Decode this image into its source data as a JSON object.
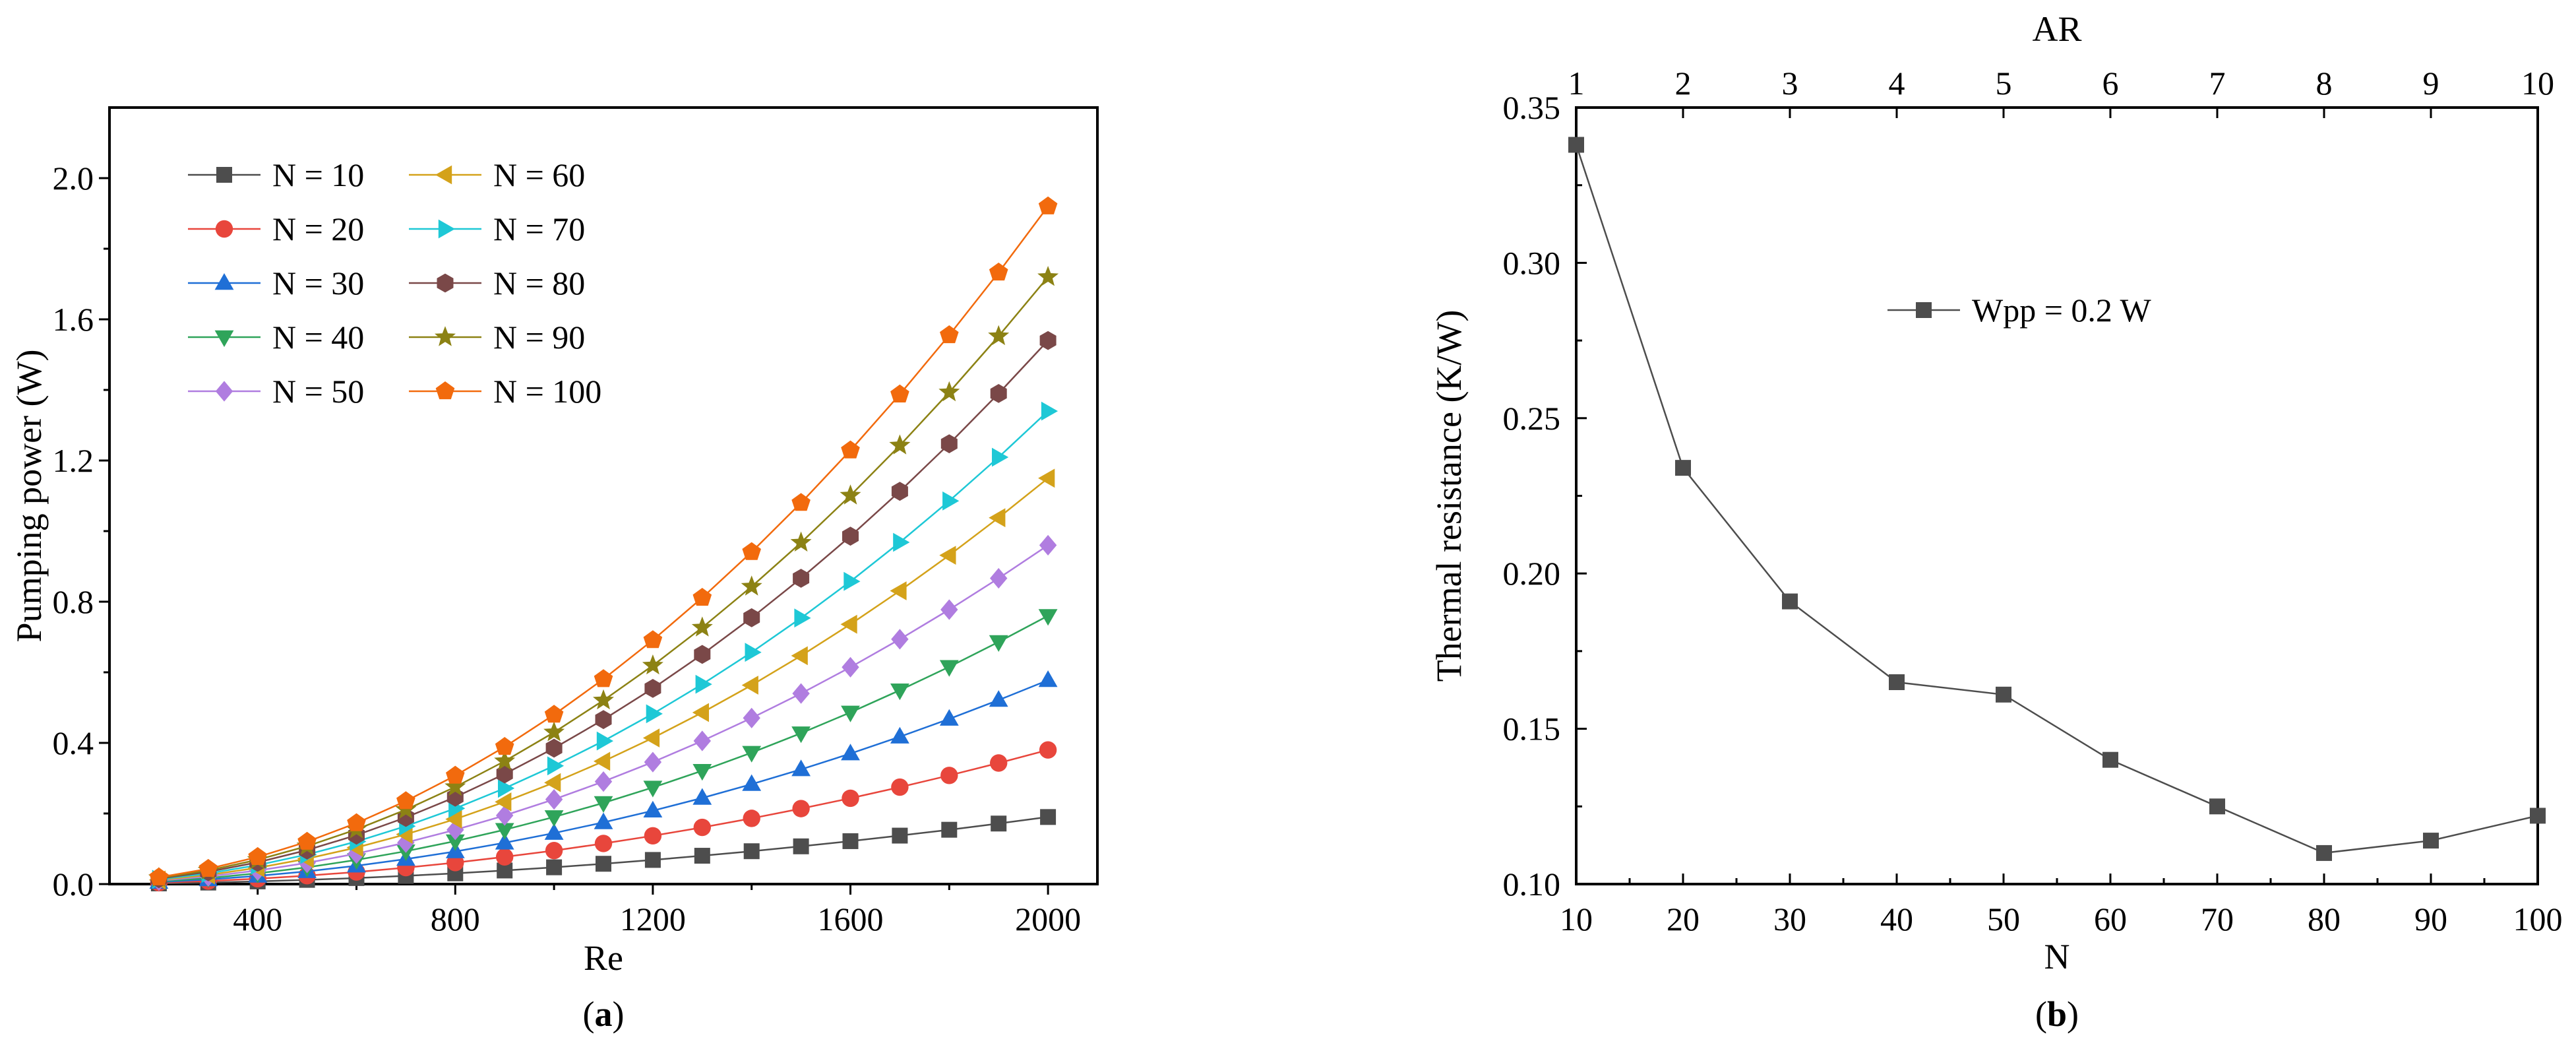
{
  "chart_data": [
    {
      "type": "line",
      "panel_label": "(a)",
      "panel_letter": "a",
      "xlabel": "Re",
      "ylabel": "Pumping power (W)",
      "xlim": [
        100,
        2100
      ],
      "ylim": [
        0,
        2.2
      ],
      "xticks": [
        400,
        800,
        1200,
        1600,
        2000
      ],
      "yticks": [
        0.0,
        0.4,
        0.8,
        1.2,
        1.6,
        2.0
      ],
      "ytick_labels": [
        "0.0",
        "0.4",
        "0.8",
        "1.2",
        "1.6",
        "2.0"
      ],
      "x": [
        200,
        300,
        400,
        500,
        600,
        700,
        800,
        900,
        1000,
        1100,
        1200,
        1300,
        1400,
        1500,
        1600,
        1700,
        1800,
        1900,
        2000
      ],
      "legend_position": "top-left",
      "series": [
        {
          "name": "N = 10",
          "color": "#4d4d4d",
          "marker": "square",
          "values": [
            0.0019,
            0.0043,
            0.0076,
            0.0119,
            0.0171,
            0.0233,
            0.0304,
            0.0385,
            0.0475,
            0.0575,
            0.0684,
            0.0803,
            0.0931,
            0.1069,
            0.1216,
            0.1373,
            0.1539,
            0.1715,
            0.19
          ]
        },
        {
          "name": "N = 20",
          "color": "#e8463c",
          "marker": "circle",
          "values": [
            0.0038,
            0.0086,
            0.0152,
            0.0238,
            0.0342,
            0.0466,
            0.0608,
            0.077,
            0.095,
            0.115,
            0.1368,
            0.1606,
            0.1862,
            0.2138,
            0.2432,
            0.2746,
            0.3078,
            0.343,
            0.38
          ]
        },
        {
          "name": "N = 30",
          "color": "#1f6fd6",
          "marker": "triangle-up",
          "values": [
            0.0058,
            0.013,
            0.0231,
            0.0361,
            0.052,
            0.0708,
            0.0924,
            0.117,
            0.1444,
            0.1747,
            0.2079,
            0.244,
            0.283,
            0.3249,
            0.3697,
            0.4173,
            0.4679,
            0.5213,
            0.5776
          ]
        },
        {
          "name": "N = 40",
          "color": "#2fa45a",
          "marker": "triangle-down",
          "values": [
            0.0076,
            0.0171,
            0.0304,
            0.0475,
            0.0684,
            0.0931,
            0.1216,
            0.1539,
            0.19,
            0.2299,
            0.2736,
            0.3211,
            0.3724,
            0.4275,
            0.4864,
            0.5491,
            0.6156,
            0.6859,
            0.76
          ]
        },
        {
          "name": "N = 50",
          "color": "#b07de0",
          "marker": "diamond",
          "values": [
            0.0096,
            0.0216,
            0.0384,
            0.06,
            0.0864,
            0.1176,
            0.1536,
            0.1944,
            0.24,
            0.2904,
            0.3456,
            0.4056,
            0.4704,
            0.54,
            0.6144,
            0.6936,
            0.7776,
            0.8664,
            0.96
          ]
        },
        {
          "name": "N = 60",
          "color": "#d4a21a",
          "marker": "triangle-left",
          "values": [
            0.0115,
            0.0259,
            0.046,
            0.0719,
            0.1035,
            0.1409,
            0.184,
            0.2329,
            0.2875,
            0.3479,
            0.414,
            0.4859,
            0.5635,
            0.6469,
            0.736,
            0.8309,
            0.9315,
            1.0379,
            1.15
          ]
        },
        {
          "name": "N = 70",
          "color": "#1ec8d6",
          "marker": "triangle-right",
          "values": [
            0.0134,
            0.0302,
            0.0536,
            0.0838,
            0.1206,
            0.1642,
            0.2144,
            0.2714,
            0.335,
            0.4054,
            0.4824,
            0.5662,
            0.6566,
            0.7538,
            0.8576,
            0.9682,
            1.0854,
            1.2094,
            1.34
          ]
        },
        {
          "name": "N = 80",
          "color": "#7a4848",
          "marker": "hexagon",
          "values": [
            0.0154,
            0.0347,
            0.0616,
            0.0963,
            0.1386,
            0.1887,
            0.2464,
            0.3119,
            0.385,
            0.4659,
            0.5544,
            0.6507,
            0.7546,
            0.8663,
            0.9856,
            1.1127,
            1.2474,
            1.3899,
            1.54
          ]
        },
        {
          "name": "N = 90",
          "color": "#8c8214",
          "marker": "star",
          "values": [
            0.0172,
            0.0387,
            0.0688,
            0.1075,
            0.1548,
            0.2107,
            0.2752,
            0.3483,
            0.43,
            0.5203,
            0.6192,
            0.7267,
            0.8428,
            0.9675,
            1.1008,
            1.2427,
            1.3932,
            1.5523,
            1.72
          ]
        },
        {
          "name": "N = 100",
          "color": "#f26a0d",
          "marker": "pentagon",
          "values": [
            0.0192,
            0.0432,
            0.0768,
            0.12,
            0.1728,
            0.2352,
            0.3072,
            0.3888,
            0.48,
            0.5808,
            0.6912,
            0.8112,
            0.9408,
            1.08,
            1.2288,
            1.3872,
            1.5552,
            1.7328,
            1.92
          ]
        }
      ]
    },
    {
      "type": "line",
      "panel_label": "(b)",
      "panel_letter": "b",
      "xlabel": "N",
      "ylabel": "Thermal resistance (K/W)",
      "top_xlabel": "AR",
      "xlim": [
        10,
        100
      ],
      "ylim": [
        0.1,
        0.35
      ],
      "xticks": [
        10,
        20,
        30,
        40,
        50,
        60,
        70,
        80,
        90,
        100
      ],
      "yticks": [
        0.1,
        0.15,
        0.2,
        0.25,
        0.3,
        0.35
      ],
      "ytick_labels": [
        "0.10",
        "0.15",
        "0.20",
        "0.25",
        "0.30",
        "0.35"
      ],
      "top_xticks": [
        1,
        2,
        3,
        4,
        5,
        6,
        7,
        8,
        9,
        10
      ],
      "legend_position": "upper-middle",
      "series": [
        {
          "name": "Wpp = 0.2 W",
          "color": "#4d4d4d",
          "marker": "square",
          "x": [
            10,
            20,
            30,
            40,
            50,
            60,
            70,
            80,
            90,
            100
          ],
          "values": [
            0.338,
            0.234,
            0.191,
            0.165,
            0.161,
            0.14,
            0.125,
            0.11,
            0.114,
            0.122
          ]
        }
      ]
    }
  ]
}
